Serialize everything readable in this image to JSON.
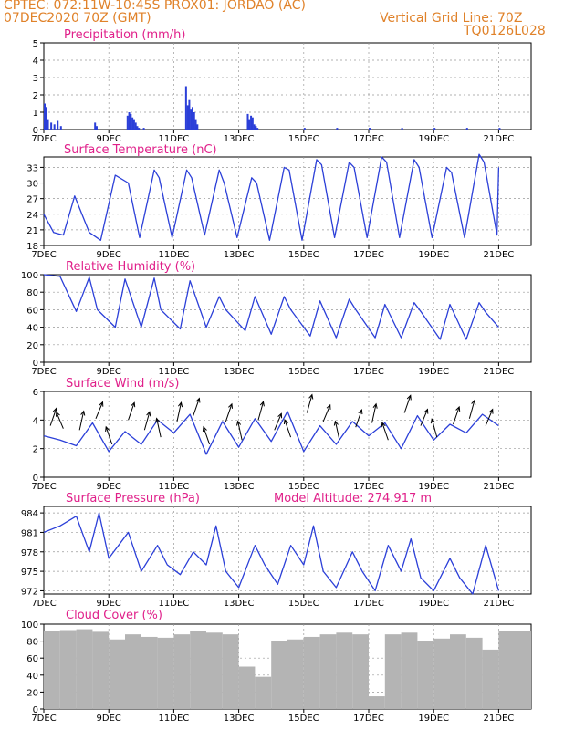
{
  "header": {
    "line1": "CPTEC:   072:11W-10:45S   PROX01: JORDAO (AC)",
    "line2": "07DEC2020 70Z (GMT)",
    "grid_note": "Vertical Grid Line: 70Z",
    "code": "TQ0126L028"
  },
  "colors": {
    "header": "#e0822a",
    "title": "#e0208a",
    "line": "#2b3fd8",
    "arrow": "#000000",
    "cloud": "#b4b4b4",
    "grid": "#999999"
  },
  "x_ticks": [
    "7DEC",
    "9DEC",
    "11DEC",
    "13DEC",
    "15DEC",
    "17DEC",
    "19DEC",
    "21DEC"
  ],
  "chart_data": [
    {
      "type": "bar",
      "title": "Precipitation (mm/h)",
      "ylim": [
        0,
        5
      ],
      "yticks": [
        "0",
        "1",
        "2",
        "3",
        "4",
        "5"
      ],
      "x_days": [
        0.0,
        0.05,
        0.1,
        0.2,
        0.3,
        0.4,
        0.5,
        1.55,
        1.6,
        2.55,
        2.6,
        2.65,
        2.7,
        2.75,
        2.8,
        2.85,
        2.9,
        3.05,
        4.35,
        4.4,
        4.45,
        4.5,
        4.55,
        4.6,
        4.65,
        4.7,
        6.25,
        6.3,
        6.35,
        6.4,
        6.45,
        6.5,
        6.55,
        8.0,
        9.0,
        10.0,
        11.0,
        12.0,
        13.0,
        14.0
      ],
      "values": [
        1.5,
        1.3,
        0.6,
        0.4,
        0.3,
        0.5,
        0.2,
        0.4,
        0.2,
        0.8,
        1.0,
        0.9,
        0.7,
        0.6,
        0.4,
        0.2,
        0.1,
        0.1,
        2.5,
        1.4,
        1.7,
        1.2,
        1.3,
        1.0,
        0.6,
        0.3,
        0.9,
        0.6,
        0.8,
        0.7,
        0.3,
        0.2,
        0.1,
        0.1,
        0.1,
        0.1,
        0.1,
        0.1,
        0.1,
        0.1
      ]
    },
    {
      "type": "line",
      "title": "Surface Temperature (nC)",
      "ylim": [
        18,
        35
      ],
      "yticks": [
        "18",
        "21",
        "24",
        "27",
        "30",
        "33"
      ],
      "series": [
        {
          "x_days": [
            0.0,
            0.3,
            0.6,
            0.95,
            1.4,
            1.75,
            2.2,
            2.6,
            2.95,
            3.4,
            3.55,
            3.95,
            4.4,
            4.55,
            4.95,
            5.4,
            5.55,
            5.95,
            6.4,
            6.55,
            6.95,
            7.4,
            7.55,
            7.95,
            8.4,
            8.55,
            8.95,
            9.4,
            9.55,
            9.95,
            10.4,
            10.55,
            10.95,
            11.4,
            11.55,
            11.95,
            12.4,
            12.55,
            12.95,
            13.4,
            13.55,
            13.95,
            14.0
          ],
          "values": [
            24,
            20.5,
            20,
            27.5,
            20.5,
            19,
            31.5,
            30,
            19.5,
            32.5,
            31,
            19.5,
            32.5,
            31,
            20,
            32.5,
            30,
            19.5,
            31,
            30,
            19,
            33,
            32.5,
            19,
            34.5,
            33.5,
            19.5,
            34,
            33,
            19.5,
            35,
            34,
            19.5,
            34.5,
            33,
            19.5,
            33,
            32,
            19.5,
            35.5,
            34,
            20,
            33
          ]
        }
      ]
    },
    {
      "type": "line",
      "title": "Relative Humidity (%)",
      "ylim": [
        0,
        100
      ],
      "yticks": [
        "0",
        "20",
        "40",
        "60",
        "80",
        "100"
      ],
      "series": [
        {
          "x_days": [
            0.0,
            0.5,
            1.0,
            1.4,
            1.65,
            2.2,
            2.5,
            3.0,
            3.4,
            3.6,
            4.2,
            4.5,
            5.0,
            5.4,
            5.6,
            6.2,
            6.5,
            7.0,
            7.4,
            7.6,
            8.2,
            8.5,
            9.0,
            9.4,
            9.6,
            10.2,
            10.5,
            11.0,
            11.4,
            11.6,
            12.2,
            12.5,
            13.0,
            13.4,
            13.6,
            14.0
          ],
          "values": [
            100,
            98,
            58,
            97,
            60,
            40,
            95,
            40,
            96,
            60,
            38,
            93,
            40,
            75,
            60,
            36,
            75,
            32,
            75,
            60,
            30,
            70,
            28,
            72,
            60,
            28,
            66,
            28,
            68,
            58,
            26,
            66,
            26,
            68,
            57,
            40
          ]
        }
      ]
    },
    {
      "type": "line",
      "title": "Surface Wind (m/s)",
      "ylim": [
        0,
        6
      ],
      "yticks": [
        "0",
        "2",
        "4",
        "6"
      ],
      "series": [
        {
          "x_days": [
            0.0,
            0.5,
            1.0,
            1.5,
            2.0,
            2.5,
            3.0,
            3.5,
            4.0,
            4.5,
            5.0,
            5.5,
            6.0,
            6.5,
            7.0,
            7.5,
            8.0,
            8.5,
            9.0,
            9.5,
            10.0,
            10.5,
            11.0,
            11.5,
            12.0,
            12.5,
            13.0,
            13.5,
            14.0
          ],
          "values": [
            2.9,
            2.6,
            2.2,
            3.8,
            1.8,
            3.2,
            2.3,
            4.0,
            3.1,
            4.4,
            1.6,
            3.9,
            2.1,
            4.1,
            2.5,
            4.6,
            1.8,
            3.6,
            2.3,
            3.9,
            2.9,
            3.8,
            2.0,
            4.3,
            2.6,
            3.7,
            3.1,
            4.4,
            3.6
          ]
        }
      ]
    },
    {
      "type": "line",
      "title": "Surface Pressure (hPa)",
      "annotation": "Model Altitude: 274.917  m",
      "ylim": [
        971.5,
        985
      ],
      "yticks": [
        "972",
        "975",
        "978",
        "981",
        "984"
      ],
      "series": [
        {
          "x_days": [
            0.0,
            0.5,
            1.0,
            1.4,
            1.7,
            2.0,
            2.3,
            2.6,
            3.0,
            3.5,
            3.8,
            4.2,
            4.6,
            5.0,
            5.3,
            5.6,
            6.0,
            6.5,
            6.8,
            7.2,
            7.6,
            8.0,
            8.3,
            8.6,
            9.0,
            9.5,
            9.8,
            10.2,
            10.6,
            11.0,
            11.3,
            11.6,
            12.0,
            12.5,
            12.8,
            13.2,
            13.6,
            14.0
          ],
          "values": [
            981,
            982,
            983.5,
            978,
            984,
            977,
            979,
            981,
            975,
            979,
            976,
            974.5,
            978,
            976,
            982,
            975,
            972.5,
            979,
            976,
            973,
            979,
            976,
            982,
            975,
            972.5,
            978,
            975,
            972,
            979,
            975,
            980,
            974,
            972,
            977,
            974,
            971.5,
            979,
            972
          ]
        }
      ]
    },
    {
      "type": "bar",
      "title": "Cloud Cover (%)",
      "ylim": [
        0,
        100
      ],
      "yticks": [
        "0",
        "20",
        "40",
        "60",
        "80",
        "100"
      ],
      "x_days": [
        0,
        0.5,
        1.0,
        1.5,
        2.0,
        2.5,
        3.0,
        3.5,
        4.0,
        4.5,
        5.0,
        5.5,
        6.0,
        6.5,
        7.0,
        7.5,
        8.0,
        8.5,
        9.0,
        9.5,
        10.0,
        10.5,
        11.0,
        11.5,
        12.0,
        12.5,
        13.0,
        13.5,
        14.0
      ],
      "values": [
        92,
        93,
        94,
        91,
        82,
        88,
        85,
        84,
        88,
        92,
        90,
        88,
        50,
        38,
        80,
        82,
        85,
        88,
        90,
        88,
        15,
        88,
        90,
        80,
        83,
        88,
        84,
        70,
        92
      ]
    }
  ],
  "wind_arrows": {
    "x_days": [
      0.2,
      0.6,
      1.1,
      1.6,
      2.1,
      2.6,
      3.1,
      3.6,
      4.1,
      4.6,
      5.1,
      5.6,
      6.1,
      6.6,
      7.1,
      7.6,
      8.1,
      8.6,
      9.1,
      9.6,
      10.1,
      10.6,
      11.1,
      11.6,
      12.1,
      12.6,
      13.1,
      13.6
    ],
    "angle_deg": [
      60,
      125,
      70,
      55,
      120,
      60,
      65,
      110,
      70,
      60,
      120,
      60,
      110,
      65,
      55,
      120,
      65,
      55,
      110,
      60,
      70,
      120,
      60,
      55,
      115,
      60,
      65,
      55
    ],
    "speed": [
      3.6,
      3.4,
      3.3,
      4.1,
      2.3,
      4.0,
      3.3,
      2.8,
      3.9,
      4.3,
      2.3,
      3.9,
      2.6,
      4.0,
      3.3,
      2.8,
      4.5,
      3.9,
      2.6,
      3.5,
      3.8,
      2.6,
      4.5,
      3.6,
      2.8,
      3.7,
      4.1,
      3.6
    ]
  }
}
